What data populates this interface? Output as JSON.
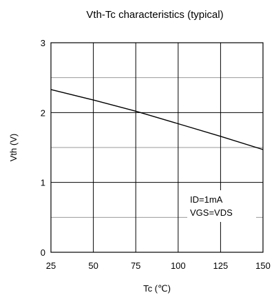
{
  "chart_data": {
    "type": "line",
    "title": "Vth-Tc characteristics (typical)",
    "xlabel": "Tc (℃)",
    "ylabel": "Vth (V)",
    "xlim": [
      25,
      150
    ],
    "ylim": [
      0,
      3
    ],
    "x_ticks": [
      "25",
      "50",
      "75",
      "100",
      "125",
      "150"
    ],
    "y_ticks": [
      "0",
      "1",
      "2",
      "3"
    ],
    "grid": true,
    "minor_y_grid": [
      0.5,
      1.5,
      2.5
    ],
    "series": [
      {
        "name": "",
        "color": "#000000",
        "points": [
          [
            25,
            2.33
          ],
          [
            50,
            2.18
          ],
          [
            75,
            2.02
          ],
          [
            100,
            1.84
          ],
          [
            125,
            1.66
          ],
          [
            150,
            1.47
          ]
        ]
      }
    ],
    "annotations": [
      "ID=1mA",
      "VGS=VDS"
    ]
  }
}
